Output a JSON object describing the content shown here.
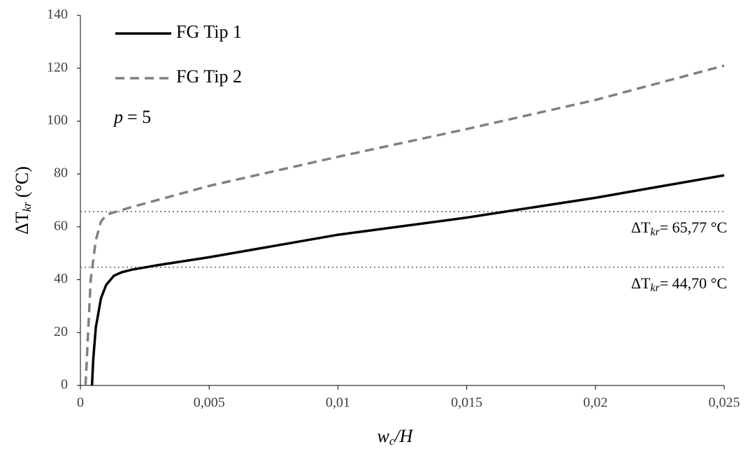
{
  "chart_data": {
    "type": "line",
    "xlabel": {
      "symbol": "w",
      "subscript": "c",
      "rest": "/H"
    },
    "ylabel": {
      "symbol": "ΔT",
      "subscript": "kr",
      "unit": "(°C)"
    },
    "xlim": [
      0,
      0.025
    ],
    "xticks": [
      0,
      {
        "value": 0.005,
        "label": "0,005"
      },
      {
        "value": 0.01,
        "label": "0,01"
      },
      {
        "value": 0.015,
        "label": "0,015"
      },
      {
        "value": 0.02,
        "label": "0,02"
      },
      {
        "value": 0.025,
        "label": "0,025"
      }
    ],
    "ylim": [
      0,
      140
    ],
    "yticks": [
      0,
      20,
      40,
      60,
      80,
      100,
      120,
      140
    ],
    "series": [
      {
        "name": "FG Tip 1",
        "color": "#000000",
        "dashed": false,
        "x": [
          0.00045,
          0.0005,
          0.0006,
          0.0008,
          0.001,
          0.0013,
          0.0016,
          0.002,
          0.003,
          0.005,
          0.01,
          0.015,
          0.02,
          0.025
        ],
        "values": [
          0,
          10,
          22,
          33,
          38,
          41.5,
          42.8,
          43.8,
          45.5,
          48.5,
          57,
          63.5,
          71,
          79.5
        ]
      },
      {
        "name": "FG Tip 2",
        "color": "#808080",
        "dashed": true,
        "x": [
          0.0002,
          0.0003,
          0.0004,
          0.0006,
          0.0008,
          0.001,
          0.0013,
          0.002,
          0.005,
          0.01,
          0.015,
          0.02,
          0.025
        ],
        "values": [
          0,
          20,
          40,
          55,
          62,
          64.5,
          65.5,
          67.5,
          75.5,
          86.5,
          97,
          108,
          121
        ]
      }
    ],
    "annotation": {
      "symbol": "p",
      "text": "= 5"
    },
    "hlines": [
      {
        "value": 65.77,
        "symbol": "ΔT",
        "subscript": "kr",
        "label": "= 65,77 °C"
      },
      {
        "value": 44.7,
        "symbol": "ΔT",
        "subscript": "kr",
        "label": "= 44,70 °C"
      }
    ]
  }
}
